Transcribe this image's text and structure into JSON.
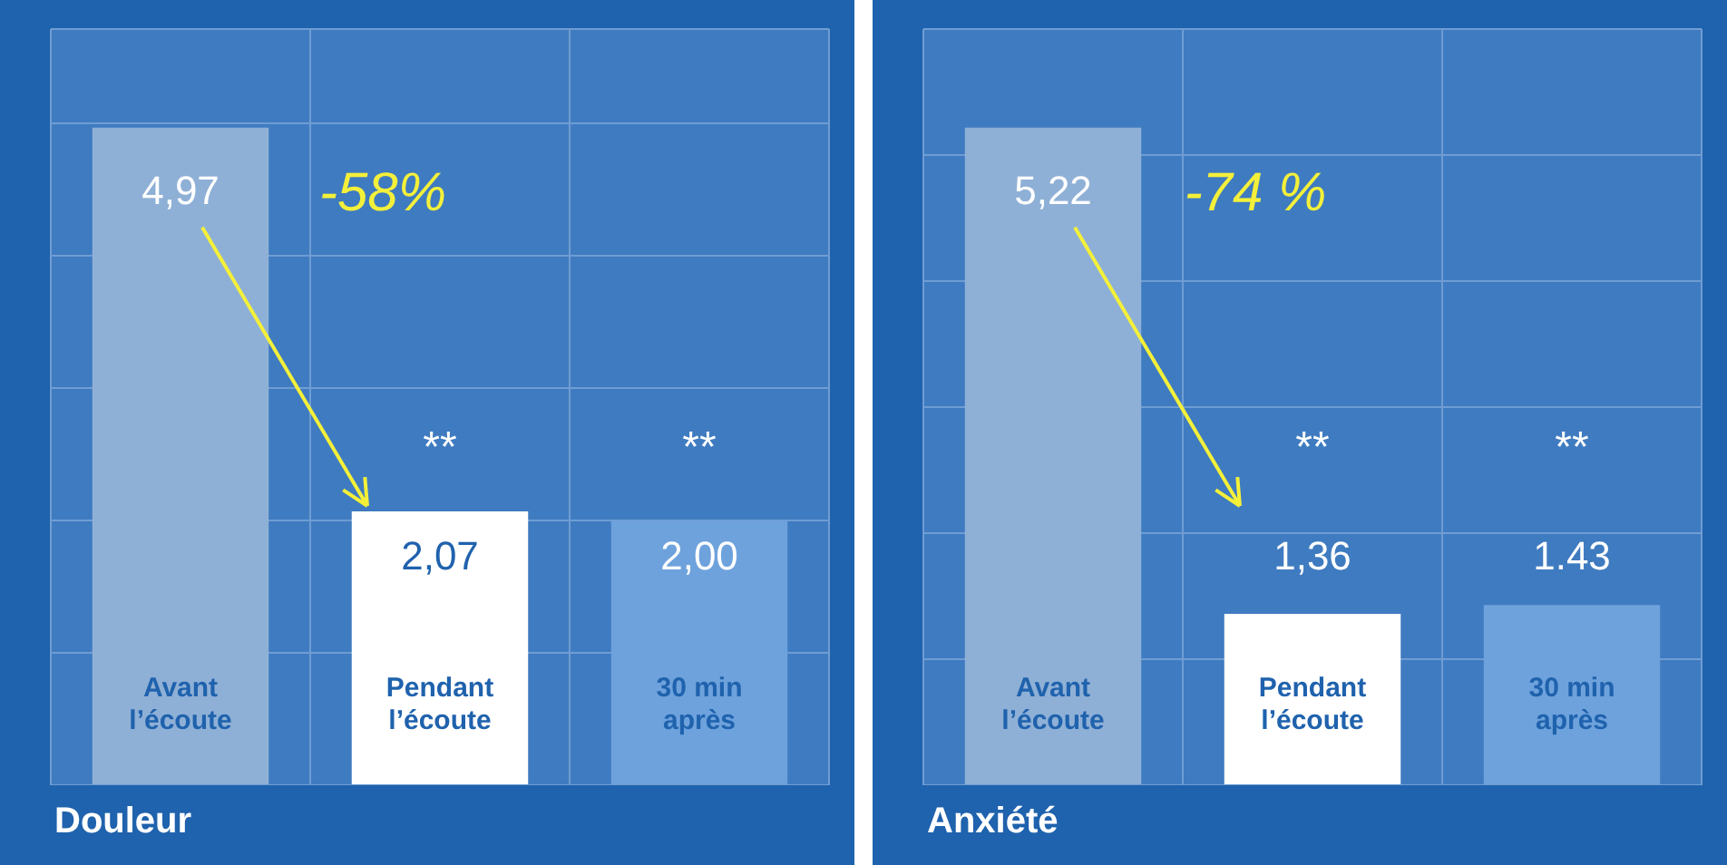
{
  "chart_data": [
    {
      "type": "bar",
      "title": "Douleur",
      "categories": [
        "Avant l’écoute",
        "Pendant l’écoute",
        "30 min après"
      ],
      "values": [
        4.97,
        2.07,
        2.0
      ],
      "colors": [
        "#8fb0d6",
        "#ffffff",
        "#6ea2dc"
      ],
      "value_labels": [
        "4,97",
        "2,07",
        "2,00"
      ],
      "grid": true,
      "annotations": [
        "-58%",
        "**",
        "**"
      ]
    },
    {
      "type": "bar",
      "title": "Anxiété",
      "categories": [
        "Avant l’écoute",
        "Pendant l’écoute",
        "30 min après"
      ],
      "values": [
        5.22,
        1.36,
        1.43
      ],
      "colors": [
        "#8fb0d6",
        "#ffffff",
        "#6ea2dc"
      ],
      "value_labels": [
        "5,22",
        "1,36",
        "1.43"
      ],
      "grid": true,
      "annotations": [
        "-74 %",
        "**",
        "**"
      ]
    }
  ]
}
